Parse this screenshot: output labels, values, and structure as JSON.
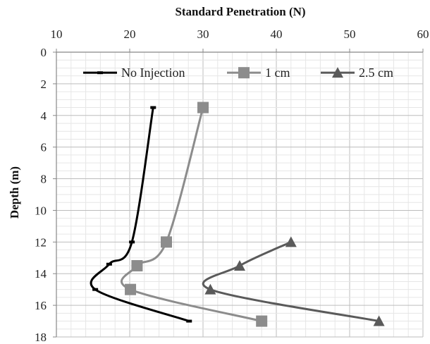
{
  "chart_data": {
    "type": "line",
    "title": "",
    "xlabel": "Standard Penetration (N)",
    "ylabel": "Depth (m)",
    "x_axis_position": "top",
    "y_axis_inverted": true,
    "xlim": [
      10,
      60
    ],
    "ylim": [
      0,
      18
    ],
    "x_ticks": [
      10,
      20,
      30,
      40,
      50,
      60
    ],
    "y_ticks": [
      0,
      2,
      4,
      6,
      8,
      10,
      12,
      14,
      16,
      18
    ],
    "grid": true,
    "legend_position": "top",
    "series": [
      {
        "name": "No Injection",
        "color": "#000000",
        "marker": "dash",
        "smooth": true,
        "points": [
          [
            23.2,
            3.5
          ],
          [
            20.3,
            12
          ],
          [
            17.2,
            13.4
          ],
          [
            15.3,
            15
          ],
          [
            28.1,
            17
          ]
        ]
      },
      {
        "name": "1 cm",
        "color": "#8c8c8c",
        "marker": "square",
        "smooth": true,
        "points": [
          [
            30,
            3.5
          ],
          [
            25,
            12
          ],
          [
            21,
            13.5
          ],
          [
            20.1,
            15
          ],
          [
            38,
            17
          ]
        ]
      },
      {
        "name": "2.5 cm",
        "color": "#5a5a5a",
        "marker": "triangle",
        "smooth": true,
        "points": [
          [
            42,
            12
          ],
          [
            35,
            13.5
          ],
          [
            31,
            15
          ],
          [
            54,
            17
          ]
        ]
      }
    ]
  }
}
